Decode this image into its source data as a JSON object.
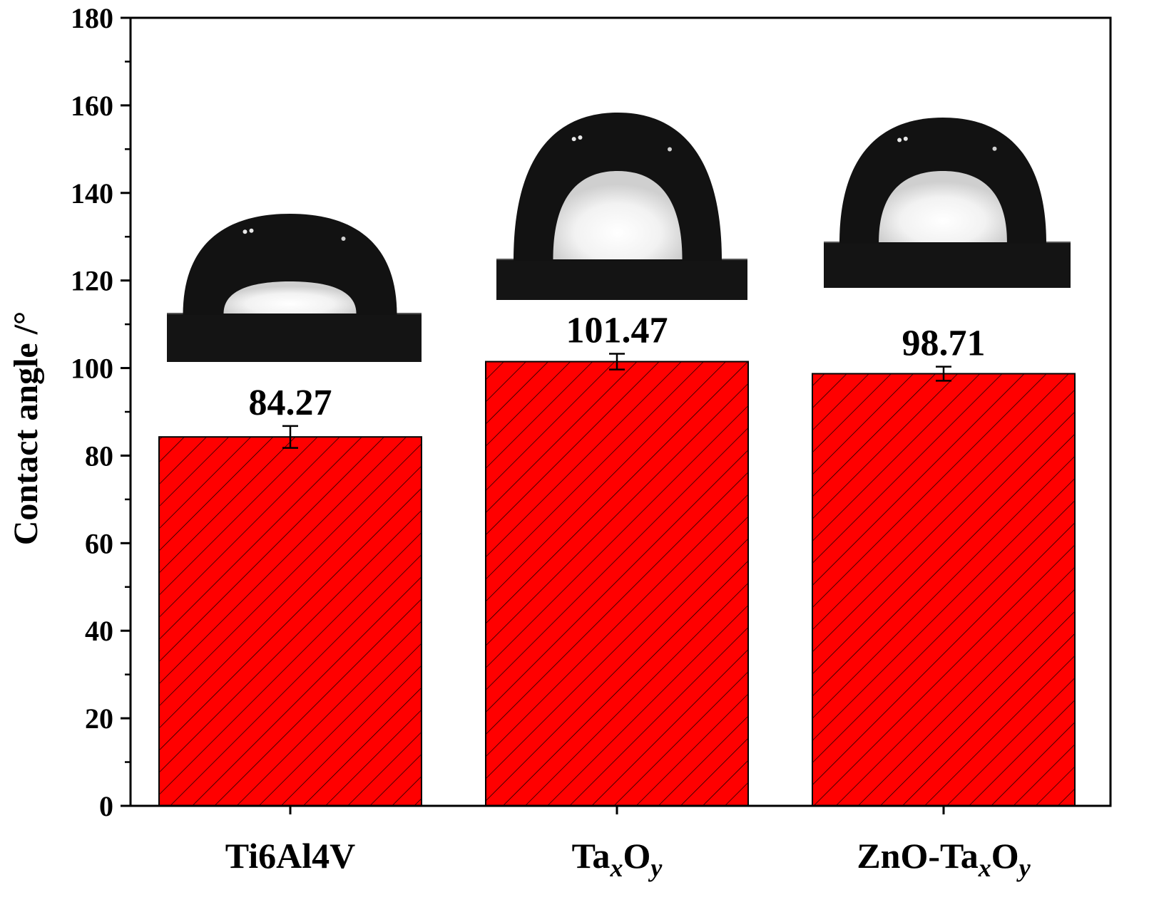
{
  "chart_data": {
    "type": "bar",
    "ylabel": "Contact angle /°",
    "xlabel": "",
    "ylim": [
      0,
      180
    ],
    "yticks": [
      0,
      20,
      40,
      60,
      80,
      100,
      120,
      140,
      160,
      180
    ],
    "grid": false,
    "categories": [
      {
        "base": "Ti6Al4V",
        "sub1": "",
        "mid": "",
        "sub2": ""
      },
      {
        "base": "Ta",
        "sub1": "x",
        "mid": "O",
        "sub2": "y"
      },
      {
        "base": "ZnO-Ta",
        "sub1": "x",
        "mid": "O",
        "sub2": "y"
      }
    ],
    "values": [
      84.27,
      101.47,
      98.71
    ],
    "value_labels": [
      "84.27",
      "101.47",
      "98.71"
    ],
    "errors": [
      2.5,
      1.8,
      1.6
    ],
    "bar_color": "#ff0000",
    "bar_pattern": "diagonal-hatch",
    "insets": [
      {
        "icon": "droplet-photo",
        "contact_angle": 84.27
      },
      {
        "icon": "droplet-photo",
        "contact_angle": 101.47
      },
      {
        "icon": "droplet-photo",
        "contact_angle": 98.71
      }
    ]
  }
}
